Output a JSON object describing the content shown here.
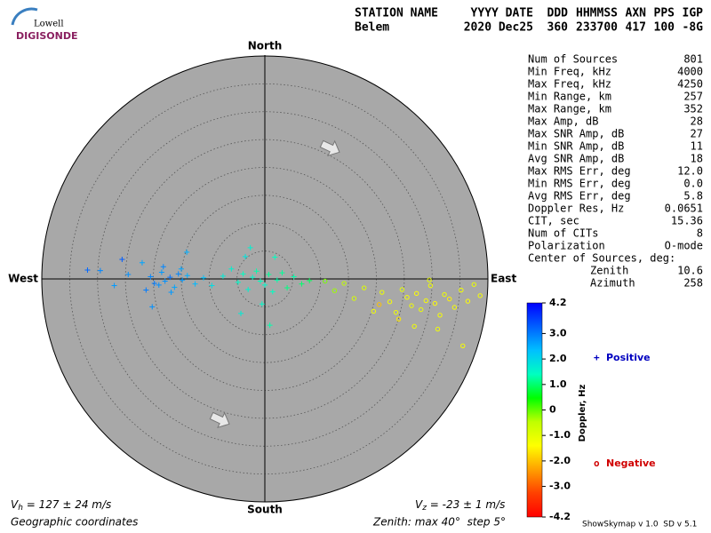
{
  "logo": {
    "top": "Lowell",
    "bottom": "DIGISONDE"
  },
  "header": {
    "labels": [
      "STATION NAME",
      "YYYY DATE",
      "DDD",
      "HHMMSS",
      "AXN",
      "PPS",
      "IGP"
    ],
    "values": [
      "Belem",
      "2020 Dec25",
      "360",
      "233700",
      "417",
      "100",
      "-8G"
    ]
  },
  "stats": {
    "rows": [
      [
        "Num of Sources",
        801
      ],
      [
        "Min Freq, kHz",
        4000
      ],
      [
        "Max Freq, kHz",
        4250
      ],
      [
        "Min Range, km",
        257
      ],
      [
        "Max Range, km",
        352
      ],
      [
        "Max Amp, dB",
        28
      ],
      [
        "Max SNR Amp, dB",
        27
      ],
      [
        "Min SNR Amp, dB",
        11
      ],
      [
        "Avg SNR Amp, dB",
        18
      ],
      [
        "Max RMS Err, deg",
        "12.0"
      ],
      [
        "Min RMS Err, deg",
        "0.0"
      ],
      [
        "Avg RMS Err, deg",
        5.8
      ],
      [
        "Doppler Res, Hz",
        0.0651
      ],
      [
        "CIT, sec",
        15.36
      ],
      [
        "Num of CITs",
        8
      ],
      [
        "Polarization",
        "O-mode"
      ]
    ],
    "center_title": "Center of Sources, deg:",
    "center_rows": [
      [
        "Zenith",
        10.6
      ],
      [
        "Azimuth",
        258
      ]
    ]
  },
  "footer": {
    "vh_symbol": "V",
    "vh_sub": "h",
    "vh_text": " = 127 ± 24 m/s",
    "vz_symbol": "V",
    "vz_sub": "z",
    "vz_text": " = -23 ± 1 m/s",
    "coords": "Geographic coordinates",
    "zenith": "Zenith: max 40°  step 5°",
    "version": "ShowSkymap v 1.0  SD v 5.1"
  },
  "chart_data": {
    "type": "skymap",
    "compass": {
      "north": "North",
      "south": "South",
      "east": "East",
      "west": "West"
    },
    "zenith_max": 40,
    "zenith_step": 5,
    "colorbar_title": "Doppler, Hz",
    "clim": [
      -4.2,
      4.2
    ],
    "cticks": [
      4.2,
      {
        "value": 3,
        "label": "3.0"
      },
      {
        "value": 2,
        "label": "2.0"
      },
      {
        "value": 1,
        "label": "1.0"
      },
      0,
      {
        "value": -1,
        "label": "-1.0"
      },
      {
        "value": -2,
        "label": "-2.0"
      },
      {
        "value": -3,
        "label": "-3.0"
      },
      -4.2
    ],
    "colorscale": [
      "#ff0000",
      "#ff4000",
      "#ffa000",
      "#ffff00",
      "#c0ff00",
      "#00ff00",
      "#00ffc0",
      "#00c0ff",
      "#0060ff",
      "#0000ff"
    ],
    "series": [
      {
        "name": "Positive",
        "marker": "+",
        "color": "#0000c0",
        "x": [
          -29.5,
          -31.8,
          -27.0,
          -24.5,
          -22.0,
          -20.5,
          -19.8,
          -18.5,
          -17.9,
          -17.0,
          -16.2,
          -15.5,
          -14.8,
          -13.9,
          -21.3,
          -19.0,
          -18.2,
          -16.8,
          -15.0,
          -12.5,
          -11.0,
          -25.6,
          -20.2,
          -14.0,
          -9.5,
          -7.5,
          -6.0,
          -4.8,
          -3.9,
          -3.0,
          -2.2,
          -1.5,
          -0.8,
          0.0,
          0.7,
          1.4,
          2.2,
          3.1,
          4.0,
          5.2,
          6.6,
          8.0,
          -2.6,
          -0.5,
          1.8,
          -4.3,
          0.9,
          -3.5
        ],
        "y": [
          1.5,
          1.6,
          -1.2,
          0.8,
          2.9,
          0.4,
          -0.8,
          1.2,
          -0.4,
          0.3,
          -1.5,
          0.9,
          -0.2,
          0.6,
          -2.0,
          -1.1,
          2.2,
          -2.4,
          1.8,
          -0.9,
          0.2,
          3.5,
          -5.0,
          4.8,
          -1.2,
          0.5,
          1.8,
          -0.6,
          0.9,
          -1.9,
          0.3,
          1.4,
          -0.4,
          -1.1,
          0.8,
          -2.3,
          -0.2,
          1.1,
          -1.6,
          0.4,
          -0.9,
          -0.3,
          5.6,
          -4.5,
          3.9,
          -6.2,
          -8.3,
          4.0
        ],
        "doppler": [
          2.9,
          3.2,
          2.7,
          2.8,
          2.6,
          2.9,
          3.0,
          2.7,
          2.8,
          3.1,
          2.6,
          2.9,
          2.7,
          2.5,
          3.0,
          2.8,
          2.9,
          2.7,
          2.6,
          2.4,
          2.3,
          3.3,
          2.8,
          2.5,
          1.9,
          1.7,
          1.6,
          1.5,
          1.4,
          1.6,
          1.5,
          1.3,
          1.4,
          1.5,
          1.2,
          1.4,
          1.3,
          1.2,
          1.1,
          1.3,
          1.0,
          0.9,
          1.6,
          1.5,
          1.4,
          1.7,
          1.3,
          1.8
        ]
      },
      {
        "name": "Negative",
        "marker": "o",
        "color": "#d00000",
        "x": [
          10.8,
          12.5,
          14.2,
          16.0,
          17.8,
          19.5,
          21.0,
          22.4,
          23.5,
          24.6,
          25.5,
          26.3,
          27.2,
          28.0,
          28.9,
          29.7,
          30.5,
          31.4,
          32.2,
          33.1,
          34.0,
          35.2,
          36.4,
          37.5,
          38.6,
          26.8,
          29.5,
          24.0,
          31.0,
          35.5,
          20.5
        ],
        "y": [
          -0.4,
          -2.1,
          -0.8,
          -3.5,
          -1.6,
          -5.8,
          -2.4,
          -4.1,
          -6.0,
          -1.9,
          -3.3,
          -4.8,
          -2.6,
          -5.5,
          -3.9,
          -1.2,
          -4.4,
          -6.5,
          -2.8,
          -3.6,
          -5.1,
          -2.0,
          -4.0,
          -1.0,
          -3.0,
          -8.5,
          -0.2,
          -7.2,
          -9.0,
          -12.0,
          -4.6
        ],
        "doppler": [
          -0.1,
          -0.3,
          -0.5,
          -0.8,
          -0.9,
          -1.2,
          -1.1,
          -1.3,
          -1.2,
          -1.0,
          -1.3,
          -1.2,
          -1.4,
          -1.1,
          -1.3,
          -1.2,
          -1.4,
          -1.3,
          -1.2,
          -1.5,
          -1.3,
          -1.2,
          -1.4,
          -1.1,
          -1.3,
          -1.2,
          -1.1,
          -1.6,
          -1.2,
          -1.3,
          -2.0
        ]
      }
    ]
  }
}
